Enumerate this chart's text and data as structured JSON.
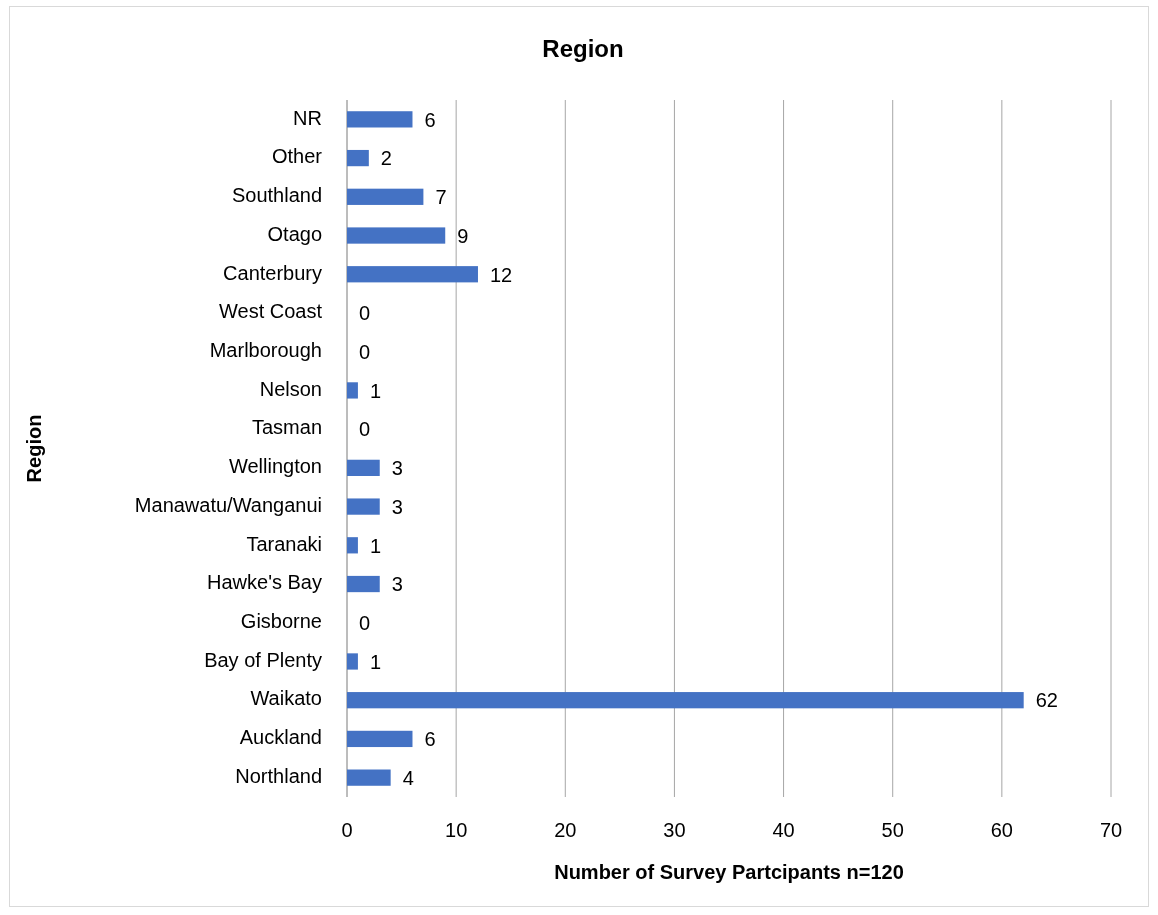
{
  "chart_data": {
    "type": "bar",
    "orientation": "horizontal",
    "title": "Region",
    "xlabel": "Number of Survey Partcipants n=120",
    "ylabel": "Region",
    "categories": [
      "NR",
      "Other",
      "Southland",
      "Otago",
      "Canterbury",
      "West Coast",
      "Marlborough",
      "Nelson",
      "Tasman",
      "Wellington",
      "Manawatu/Wanganui",
      "Taranaki",
      "Hawke's Bay",
      "Gisborne",
      "Bay of Plenty",
      "Waikato",
      "Auckland",
      "Northland"
    ],
    "values": [
      6,
      2,
      7,
      9,
      12,
      0,
      0,
      1,
      0,
      3,
      3,
      1,
      3,
      0,
      1,
      62,
      6,
      4
    ],
    "color": "#4472c4",
    "xlim": [
      0,
      70
    ],
    "xticks": [
      0,
      10,
      20,
      30,
      40,
      50,
      60,
      70
    ],
    "grid": "x",
    "data_labels": true
  }
}
